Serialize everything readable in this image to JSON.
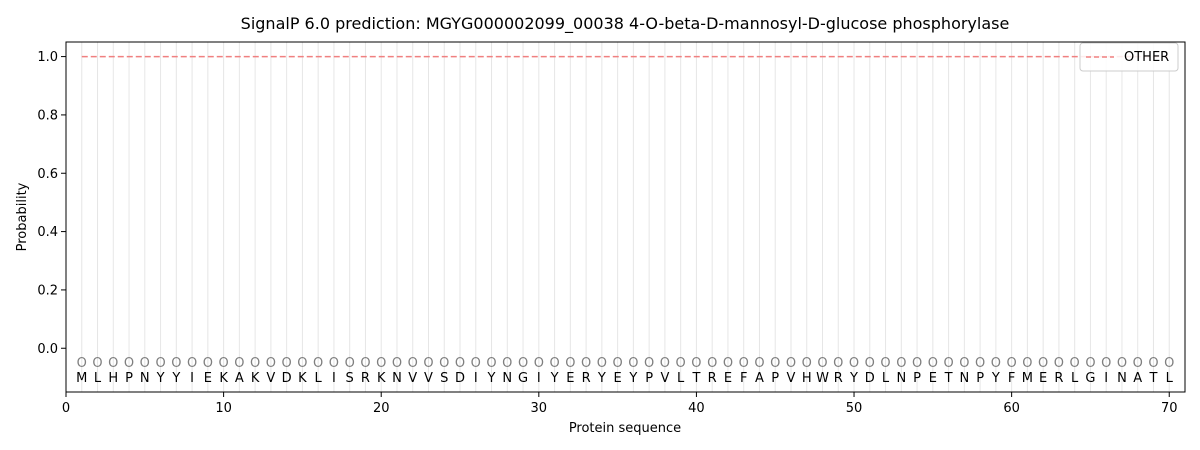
{
  "chart_data": {
    "type": "line",
    "title": "SignalP 6.0 prediction: MGYG000002099_00038 4-O-beta-D-mannosyl-D-glucose phosphorylase",
    "xlabel": "Protein sequence",
    "ylabel": "Probability",
    "xlim": [
      0,
      71
    ],
    "ylim": [
      -0.15,
      1.05
    ],
    "xticks": [
      0,
      10,
      20,
      30,
      40,
      50,
      60,
      70
    ],
    "yticks": [
      0.0,
      0.2,
      0.4,
      0.6,
      0.8,
      1.0
    ],
    "ytick_labels": [
      "0.0",
      "0.2",
      "0.4",
      "0.6",
      "0.8",
      "1.0"
    ],
    "grid": "vertical lines at each residue",
    "legend_position": "top-right",
    "sequence": [
      "M",
      "L",
      "H",
      "P",
      "N",
      "Y",
      "Y",
      "I",
      "E",
      "K",
      "A",
      "K",
      "V",
      "D",
      "K",
      "L",
      "I",
      "S",
      "R",
      "K",
      "N",
      "V",
      "V",
      "S",
      "D",
      "I",
      "Y",
      "N",
      "G",
      "I",
      "Y",
      "E",
      "R",
      "Y",
      "E",
      "Y",
      "P",
      "V",
      "L",
      "T",
      "R",
      "E",
      "F",
      "A",
      "P",
      "V",
      "H",
      "W",
      "R",
      "Y",
      "D",
      "L",
      "N",
      "P",
      "E",
      "T",
      "N",
      "P",
      "Y",
      "F",
      "M",
      "E",
      "R",
      "L",
      "G",
      "I",
      "N",
      "A",
      "T",
      "L"
    ],
    "region_label": "O",
    "series": [
      {
        "name": "OTHER",
        "color": "#f08080",
        "style": "dashed",
        "x": [
          1,
          70
        ],
        "values": [
          1.0,
          1.0
        ]
      }
    ]
  }
}
